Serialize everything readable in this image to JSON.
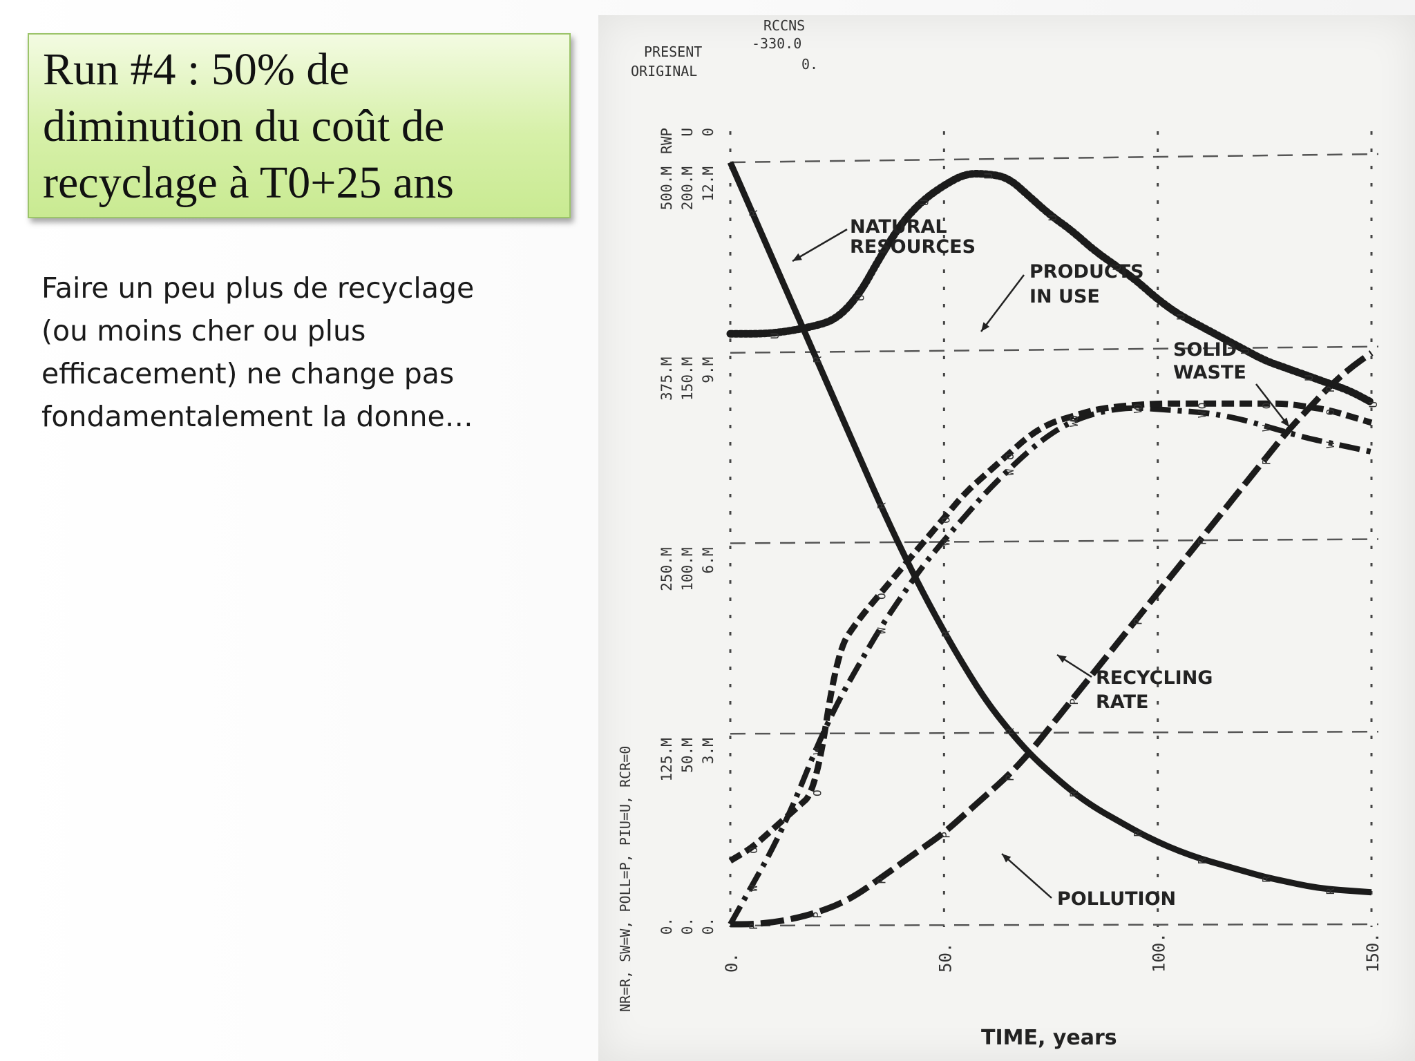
{
  "slide": {
    "title": "Run #4 : 50% de diminution du coût de recyclage à T0+25 ans",
    "body": "Faire un peu plus de recyclage (ou moins cher ou plus efficacement) ne change pas fondamentalement la donne…"
  },
  "chart_data": {
    "type": "line",
    "xlabel": "TIME, years",
    "xlim": [
      0,
      150
    ],
    "x_ticks": [
      "0.",
      "50.",
      "100.",
      "150."
    ],
    "y_columns": [
      {
        "ticks": [
          "0.",
          "125.M",
          "250.M",
          "375.M",
          "500.M"
        ],
        "unit": "RWP"
      },
      {
        "ticks": [
          "0.",
          "50.M",
          "100.M",
          "150.M",
          "200.M"
        ],
        "unit": "U"
      },
      {
        "ticks": [
          "0.",
          "3.M",
          "6.M",
          "9.M",
          "12.M"
        ],
        "unit": "0"
      }
    ],
    "y_legend": "NR=R, SW=W, POLL=P, PIU=U, RCR=0",
    "header": {
      "param": "RCCNS",
      "rows": [
        {
          "label": "PRESENT",
          "value": "-330.0"
        },
        {
          "label": "ORIGINAL",
          "value": "0."
        }
      ]
    },
    "grid": true,
    "series": [
      {
        "name": "NATURAL RESOURCES",
        "marker": "R",
        "style": "solid",
        "x": [
          0,
          5,
          10,
          15,
          20,
          25,
          30,
          35,
          40,
          45,
          50,
          55,
          60,
          65,
          70,
          75,
          80,
          85,
          90,
          95,
          100,
          105,
          110,
          115,
          120,
          125,
          130,
          135,
          140,
          145,
          150
        ],
        "y": [
          500,
          468,
          436,
          404,
          372,
          340,
          308,
          276,
          246,
          218,
          192,
          168,
          146,
          128,
          112,
          99,
          87,
          77,
          69,
          61,
          54,
          48,
          43,
          39,
          35,
          31,
          28,
          25,
          23,
          22,
          21
        ]
      },
      {
        "name": "PRODUCTS IN USE",
        "marker": "U",
        "style": "dotted",
        "x": [
          0,
          10,
          20,
          25,
          30,
          35,
          40,
          45,
          50,
          55,
          60,
          65,
          70,
          75,
          80,
          85,
          90,
          95,
          100,
          105,
          110,
          115,
          120,
          125,
          130,
          135,
          140,
          145,
          150
        ],
        "y": [
          155,
          155,
          157,
          159,
          165,
          175,
          184,
          190,
          194,
          197,
          197,
          196,
          191,
          186,
          182,
          177,
          173,
          169,
          164,
          160,
          157,
          154,
          151,
          148,
          146,
          144,
          142,
          140,
          137
        ]
      },
      {
        "name": "SOLID WASTE",
        "marker": "W",
        "style": "dash-dot",
        "x": [
          0,
          5,
          10,
          15,
          20,
          25,
          30,
          35,
          40,
          45,
          50,
          55,
          60,
          65,
          70,
          75,
          80,
          85,
          90,
          95,
          100,
          105,
          110,
          115,
          120,
          125,
          130,
          135,
          140,
          145,
          150
        ],
        "y": [
          0,
          25,
          50,
          80,
          115,
          145,
          170,
          194,
          215,
          235,
          252,
          268,
          284,
          298,
          311,
          322,
          330,
          335,
          338,
          339,
          338,
          337,
          336,
          334,
          331,
          327,
          323,
          319,
          316,
          313,
          310
        ]
      },
      {
        "name": "RECYCLING RATE",
        "marker": "O",
        "style": "dashed",
        "x": [
          0,
          5,
          10,
          15,
          20,
          25,
          30,
          35,
          40,
          45,
          50,
          55,
          60,
          65,
          70,
          75,
          80,
          85,
          90,
          95,
          100,
          105,
          110,
          115,
          120,
          125,
          130,
          135,
          140,
          145,
          150
        ],
        "y": [
          1.0,
          1.2,
          1.5,
          1.8,
          2.1,
          4.3,
          4.8,
          5.2,
          5.6,
          6.0,
          6.4,
          6.8,
          7.1,
          7.4,
          7.7,
          7.9,
          8.0,
          8.1,
          8.15,
          8.18,
          8.2,
          8.2,
          8.2,
          8.2,
          8.2,
          8.2,
          8.2,
          8.15,
          8.1,
          8.0,
          7.9
        ]
      },
      {
        "name": "POLLUTION",
        "marker": "P",
        "style": "long-dash",
        "x": [
          0,
          5,
          10,
          15,
          20,
          25,
          30,
          35,
          40,
          45,
          50,
          55,
          60,
          65,
          70,
          75,
          80,
          85,
          90,
          95,
          100,
          105,
          110,
          115,
          120,
          125,
          130,
          135,
          140,
          145,
          150
        ],
        "y": [
          0,
          0,
          0.5,
          1.5,
          3,
          5,
          8,
          12,
          16,
          20,
          24,
          29,
          34,
          39,
          45,
          52,
          59,
          66,
          73,
          80,
          87,
          94,
          101,
          108,
          115,
          122,
          129,
          135,
          141,
          146,
          150
        ]
      }
    ],
    "y_values_note_scale": "first y column (0-500.M) for NR, SW; second (0-200.M) for PIU, POLL; third (0-12.M) for RCR",
    "series_scales": [
      500,
      200,
      500,
      12,
      200
    ],
    "annotations": [
      {
        "text": "NATURAL RESOURCES",
        "series": 0
      },
      {
        "text": "PRODUCTS IN USE",
        "series": 1
      },
      {
        "text": "SOLID WASTE",
        "series": 2
      },
      {
        "text": "RECYCLING RATE",
        "series": 3
      },
      {
        "text": "POLLUTION",
        "series": 4
      }
    ]
  }
}
